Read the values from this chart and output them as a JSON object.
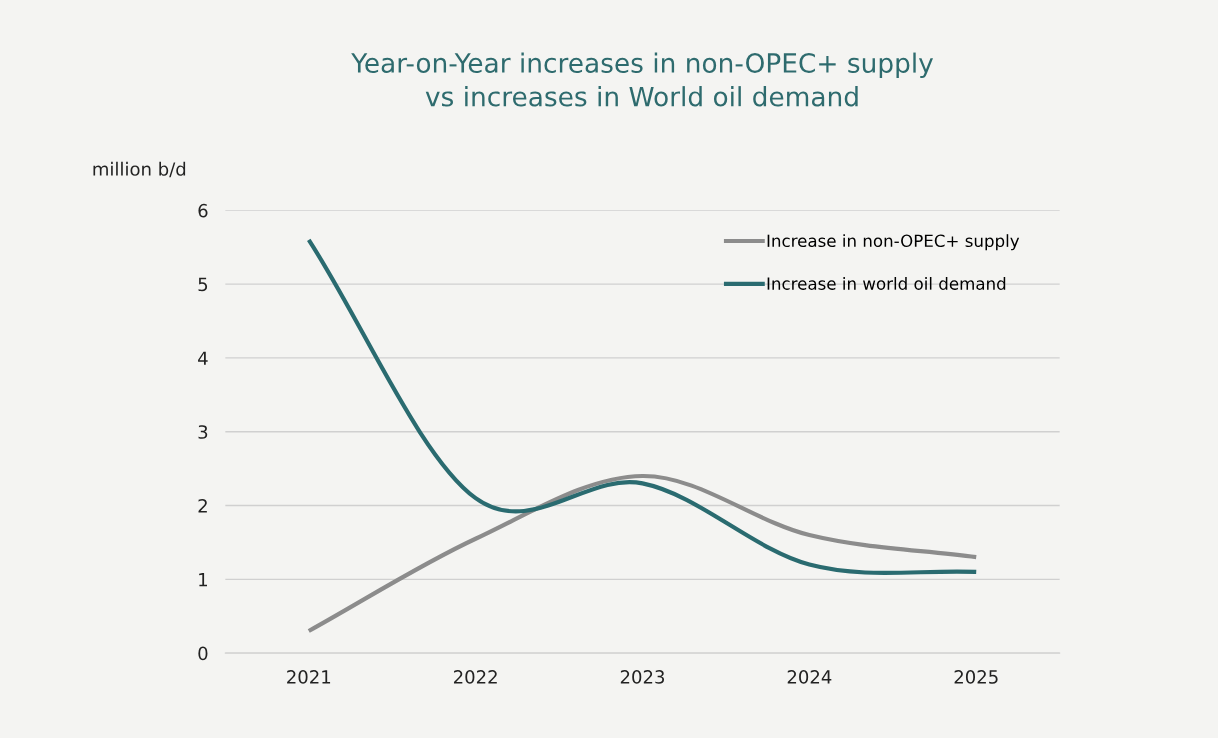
{
  "chart_data": {
    "type": "line",
    "title": "Year-on-Year increases in non-OPEC+ supply\nvs increases in World oil demand",
    "ylabel": "million b/d",
    "categories": [
      "2021",
      "2022",
      "2023",
      "2024",
      "2025"
    ],
    "series": [
      {
        "name": "Increase in non-OPEC+ supply",
        "color": "#8c8c8c",
        "values": [
          0.3,
          1.55,
          2.4,
          1.6,
          1.3
        ]
      },
      {
        "name": "Increase in world oil demand",
        "color": "#2a6b70",
        "values": [
          5.6,
          2.1,
          2.3,
          1.2,
          1.1
        ]
      }
    ],
    "ylim": [
      0,
      6
    ],
    "yticks": [
      0,
      1,
      2,
      3,
      4,
      5,
      6
    ],
    "grid": "y",
    "legend": "top right",
    "marker": "none",
    "line_style": "solid"
  }
}
